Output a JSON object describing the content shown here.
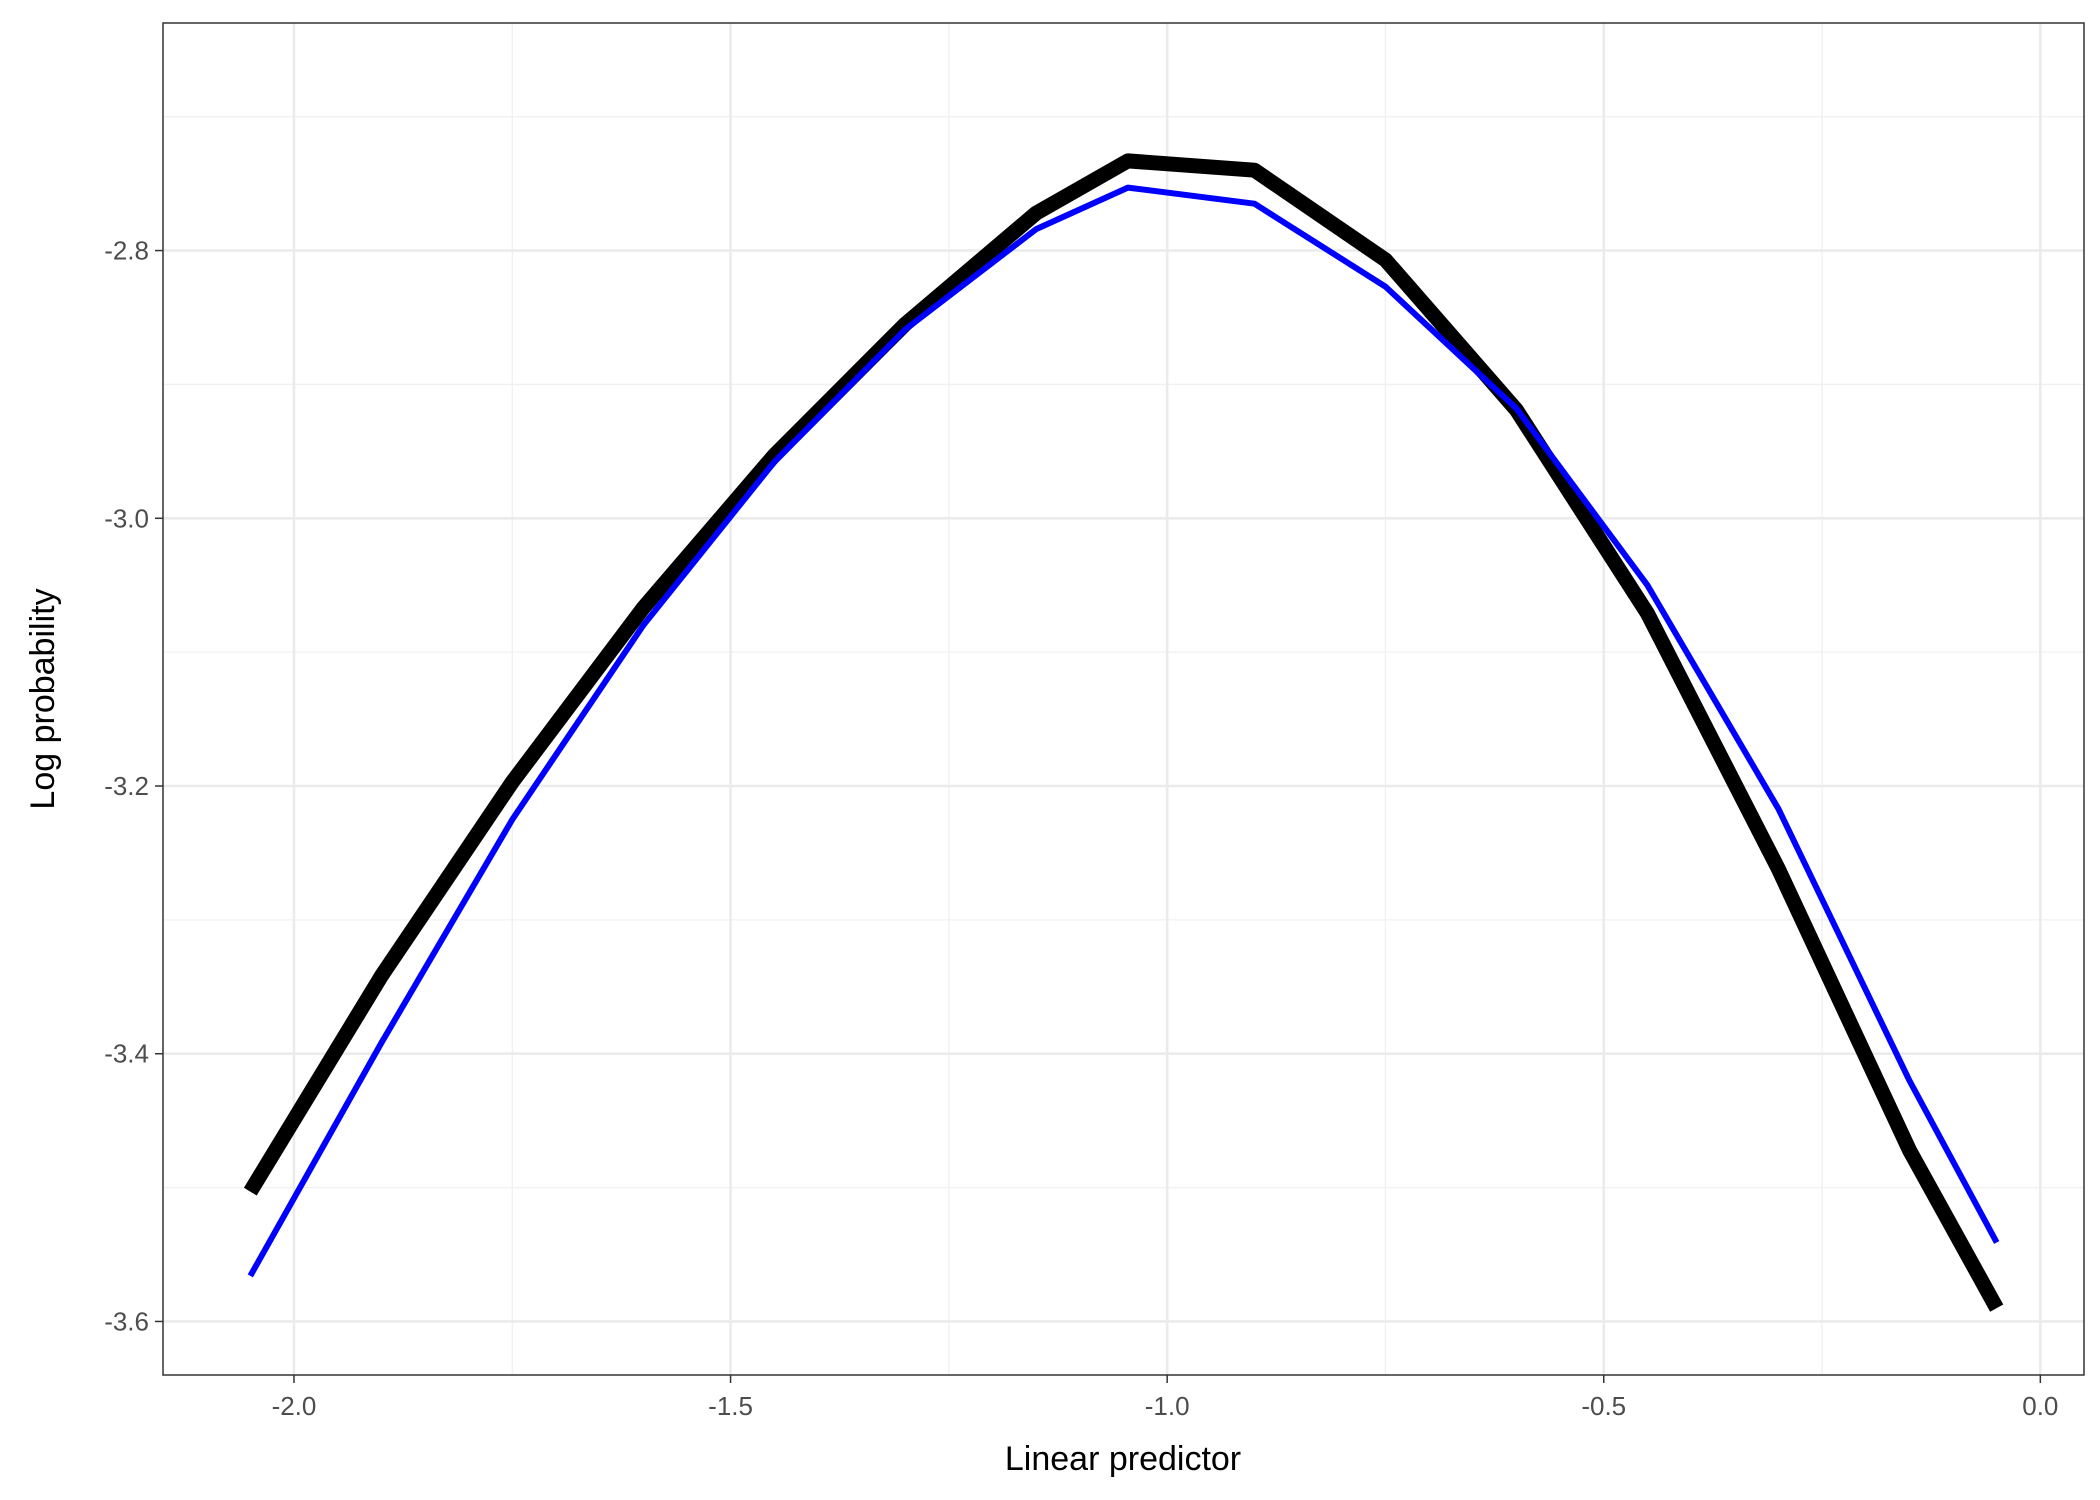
{
  "chart_data": {
    "type": "line",
    "title": "",
    "xlabel": "Linear predictor",
    "ylabel": "Log probability",
    "xlim": [
      -2.15,
      0.05
    ],
    "ylim": [
      -3.64,
      -2.63
    ],
    "x_ticks": [
      -2.0,
      -1.5,
      -1.0,
      -0.5,
      0.0
    ],
    "x_tick_labels": [
      "-2.0",
      "-1.5",
      "-1.0",
      "-0.5",
      "0.0"
    ],
    "x_minor_ticks": [
      -1.75,
      -1.25,
      -0.75,
      -0.25
    ],
    "y_ticks": [
      -3.6,
      -3.4,
      -3.2,
      -3.0,
      -2.8
    ],
    "y_tick_labels": [
      "-3.6",
      "-3.4",
      "-3.2",
      "-3.0",
      "-2.8"
    ],
    "y_minor_ticks": [
      -3.5,
      -3.3,
      -3.1,
      -2.9,
      -2.7
    ],
    "grid": true,
    "legend": "none",
    "series": [
      {
        "color": "#000000",
        "x": [
          -2.05,
          -1.9,
          -1.75,
          -1.6,
          -1.45,
          -1.3,
          -1.15,
          -1.045,
          -0.9,
          -0.75,
          -0.6,
          -0.45,
          -0.3,
          -0.15,
          -0.05
        ],
        "y": [
          -3.503,
          -3.342,
          -3.197,
          -3.067,
          -2.953,
          -2.855,
          -2.772,
          -2.733,
          -2.74,
          -2.807,
          -2.919,
          -3.071,
          -3.262,
          -3.472,
          -3.59
        ]
      },
      {
        "color": "#0000ff",
        "x": [
          -2.05,
          -1.9,
          -1.75,
          -1.6,
          -1.45,
          -1.3,
          -1.15,
          -1.045,
          -0.9,
          -0.75,
          -0.6,
          -0.45,
          -0.3,
          -0.15,
          -0.05
        ],
        "y": [
          -3.566,
          -3.392,
          -3.225,
          -3.08,
          -2.958,
          -2.859,
          -2.784,
          -2.753,
          -2.765,
          -2.827,
          -2.918,
          -3.05,
          -3.217,
          -3.42,
          -3.541
        ]
      }
    ]
  }
}
